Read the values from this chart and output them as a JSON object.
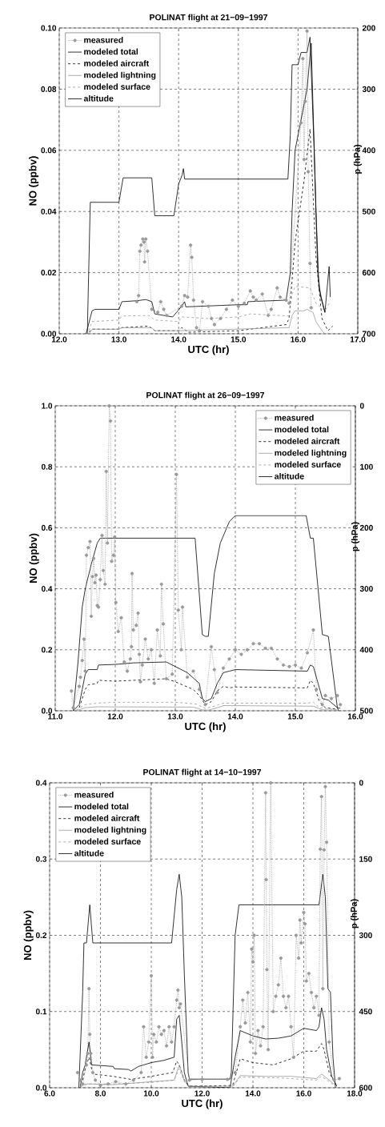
{
  "chart_data": [
    {
      "type": "line",
      "title": "POLINAT flight at 21−09−1997",
      "xlabel": "UTC (hr)",
      "ylabel": "NO (ppbv)",
      "y2label": "p (hPa)",
      "xlim": [
        12,
        17
      ],
      "ylim": [
        0,
        0.1
      ],
      "y2lim": [
        700,
        200
      ],
      "xticks": [
        {
          "value": 12,
          "label": "12.0"
        },
        {
          "value": 13,
          "label": "13.0"
        },
        {
          "value": 14,
          "label": "14.0"
        },
        {
          "value": 15,
          "label": "15.0"
        },
        {
          "value": 16,
          "label": "16.0"
        },
        {
          "value": 17,
          "label": "17.0"
        }
      ],
      "yticks": [
        {
          "value": 0,
          "label": "0.00"
        },
        {
          "value": 0.02,
          "label": "0.02"
        },
        {
          "value": 0.04,
          "label": "0.04"
        },
        {
          "value": 0.06,
          "label": "0.06"
        },
        {
          "value": 0.08,
          "label": "0.08"
        },
        {
          "value": 0.1,
          "label": "0.10"
        }
      ],
      "y2ticks": [
        200,
        300,
        400,
        500,
        600,
        700
      ],
      "grid": true,
      "legend": "top left",
      "series": [
        {
          "name": "measured",
          "color": "#999999",
          "marker": "circle",
          "line_style": "dotted",
          "x": [
            13.3,
            13.33,
            13.35,
            13.37,
            13.4,
            13.42,
            13.43,
            13.45,
            13.48,
            13.55,
            13.65,
            13.7,
            13.75,
            13.8,
            14.05,
            14.1,
            14.15,
            14.2,
            14.22,
            14.25,
            14.3,
            14.35,
            14.4,
            14.5,
            14.55,
            14.6,
            14.7,
            14.8,
            14.9,
            15.0,
            15.1,
            15.2,
            15.25,
            15.3,
            15.4,
            15.5,
            15.55,
            15.65,
            15.7,
            15.8,
            15.85,
            16.05,
            16.08,
            16.1,
            16.12,
            16.15,
            16.17,
            16.2,
            16.22
          ],
          "values": [
            0.0105,
            0.0125,
            0.027,
            0.029,
            0.031,
            0.03,
            0.0235,
            0.031,
            0.027,
            0.008,
            0.007,
            0.0105,
            0.008,
            0.006,
            0.009,
            0.0125,
            0.012,
            0.029,
            0.025,
            0.011,
            0.002,
            0.001,
            0.0105,
            0.009,
            0.005,
            0.003,
            0.005,
            0.008,
            0.011,
            0.009,
            0.01,
            0.014,
            0.012,
            0.011,
            0.013,
            0.006,
            0.008,
            0.015,
            0.012,
            0.011,
            0.01,
            0.069,
            0.09,
            0.057,
            0.076,
            0.099,
            0.053,
            0.023,
            0.0085
          ]
        },
        {
          "name": "modeled total",
          "color": "#000000",
          "marker": "none",
          "line_style": "solid",
          "x": [
            12.45,
            12.55,
            12.6,
            13.0,
            13.05,
            13.3,
            13.45,
            13.55,
            13.6,
            13.9,
            14.05,
            14.1,
            14.12,
            15.0,
            15.15,
            15.16,
            15.8,
            15.87,
            15.9,
            15.95,
            16.05,
            16.15,
            16.22,
            16.3,
            16.35,
            16.45
          ],
          "values": [
            0,
            0.0075,
            0.008,
            0.008,
            0.0105,
            0.0108,
            0.0112,
            0.0105,
            0.0065,
            0.0055,
            0.009,
            0.0105,
            0.0088,
            0.0095,
            0.0095,
            0.0105,
            0.011,
            0.02,
            0.04,
            0.06,
            0.07,
            0.08,
            0.095,
            0.04,
            0.015,
            0.007
          ]
        },
        {
          "name": "modeled aircraft",
          "color": "#000000",
          "marker": "none",
          "line_style": "dashed",
          "x": [
            12.5,
            12.55,
            13.0,
            13.05,
            13.5,
            13.6,
            14.0,
            14.05,
            14.1,
            14.15,
            15.0,
            15.8,
            15.85,
            15.95,
            16.1,
            16.2,
            16.3,
            16.4,
            16.5,
            16.58
          ],
          "values": [
            0.0005,
            0.0015,
            0.0015,
            0.002,
            0.0025,
            0.001,
            0.001,
            0.002,
            0.0015,
            0.0005,
            0.001,
            0.003,
            0.005,
            0.03,
            0.05,
            0.067,
            0.025,
            0.005,
            0.001,
            0.0025
          ]
        },
        {
          "name": "modeled lightning",
          "color": "#999999",
          "marker": "none",
          "line_style": "solid",
          "x": [
            12.5,
            12.55,
            13.0,
            13.05,
            13.55,
            13.6,
            14.0,
            15.85,
            15.9,
            15.95,
            16.1,
            16.15,
            16.25,
            16.3,
            16.4,
            16.45
          ],
          "values": [
            0,
            0.0015,
            0.0015,
            0.002,
            0.002,
            0.001,
            0.001,
            0.002,
            0.006,
            0.0075,
            0.0075,
            0.008,
            0.007,
            0.004,
            0.001,
            0
          ]
        },
        {
          "name": "modeled surface",
          "color": "#999999",
          "marker": "none",
          "line_style": "dashed",
          "x": [
            12.5,
            12.55,
            13.0,
            13.05,
            13.5,
            13.6,
            14.0,
            14.05,
            14.5,
            15.0,
            15.2,
            15.85,
            15.9,
            15.95,
            16.2,
            16.3,
            16.45,
            16.52
          ],
          "values": [
            0.001,
            0.004,
            0.0045,
            0.0058,
            0.006,
            0.0045,
            0.004,
            0.0055,
            0.005,
            0.0055,
            0.0065,
            0.0058,
            0.013,
            0.0155,
            0.015,
            0.01,
            0.0075,
            0.01
          ]
        },
        {
          "name": "altitude",
          "color": "#000000",
          "marker": "none",
          "line_style": "solid",
          "axis": "y2",
          "x": [
            12.47,
            12.52,
            13.0,
            13.07,
            13.55,
            13.6,
            13.92,
            14.0,
            14.06,
            14.08,
            14.1,
            15.83,
            15.87,
            15.9,
            16.0,
            16.05,
            16.15,
            16.2,
            16.27,
            16.33,
            16.38,
            16.45,
            16.52,
            16.54
          ],
          "values": [
            700,
            485,
            485,
            445,
            445,
            507,
            507,
            455,
            440,
            430,
            447,
            447,
            375,
            260,
            260,
            240,
            240,
            215,
            400,
            600,
            640,
            665,
            590,
            640
          ]
        }
      ]
    },
    {
      "type": "line",
      "title": "POLINAT flight at 26−09−1997",
      "xlabel": "UTC (hr)",
      "ylabel": "NO (ppbv)",
      "y2label": "p (hPa)",
      "xlim": [
        11,
        16
      ],
      "ylim": [
        0,
        1
      ],
      "y2lim": [
        500,
        0
      ],
      "xticks": [
        {
          "value": 11,
          "label": "11.0"
        },
        {
          "value": 12,
          "label": "12.0"
        },
        {
          "value": 13,
          "label": "13.0"
        },
        {
          "value": 14,
          "label": "14.0"
        },
        {
          "value": 15,
          "label": "15.0"
        },
        {
          "value": 16,
          "label": "16.0"
        }
      ],
      "yticks": [
        {
          "value": 0,
          "label": "0.0"
        },
        {
          "value": 0.2,
          "label": "0.2"
        },
        {
          "value": 0.4,
          "label": "0.4"
        },
        {
          "value": 0.6,
          "label": "0.6"
        },
        {
          "value": 0.8,
          "label": "0.8"
        },
        {
          "value": 1,
          "label": "1.0"
        }
      ],
      "y2ticks": [
        0,
        100,
        200,
        300,
        400,
        500
      ],
      "grid": true,
      "legend": "top right",
      "series": [
        {
          "name": "measured",
          "color": "#999999",
          "marker": "circle",
          "line_style": "dotted",
          "x": [
            11.27,
            11.3,
            11.4,
            11.42,
            11.45,
            11.48,
            11.5,
            11.52,
            11.55,
            11.58,
            11.6,
            11.62,
            11.64,
            11.66,
            11.68,
            11.7,
            11.72,
            11.75,
            11.78,
            11.8,
            11.83,
            11.85,
            11.87,
            11.9,
            11.92,
            11.94,
            11.97,
            11.99,
            12.01,
            12.05,
            12.1,
            12.15,
            12.2,
            12.25,
            12.27,
            12.28,
            12.3,
            12.35,
            12.38,
            12.4,
            12.42,
            12.45,
            12.5,
            12.55,
            12.6,
            12.65,
            12.7,
            12.75,
            12.77,
            12.8,
            12.85,
            12.95,
            13.02,
            13.05,
            13.1,
            13.12,
            13.2,
            13.3,
            13.4,
            13.5,
            13.6,
            13.65,
            13.7,
            13.8,
            13.9,
            14.0,
            14.1,
            14.2,
            14.3,
            14.4,
            14.5,
            14.6,
            14.7,
            14.8,
            14.9,
            15.0,
            15.1,
            15.2,
            15.3,
            15.35,
            15.45,
            15.5,
            15.6,
            15.7,
            15.75
          ],
          "values": [
            0.065,
            0.01,
            0.08,
            0.11,
            0.165,
            0.235,
            0.13,
            0.51,
            0.535,
            0.555,
            0.31,
            0.44,
            0.5,
            0.42,
            0.445,
            0.345,
            0.34,
            0.43,
            0.575,
            0.46,
            0.415,
            0.785,
            0.55,
            1.0,
            0.95,
            0.49,
            0.51,
            0.57,
            0.355,
            0.26,
            0.305,
            0.16,
            0.13,
            0.17,
            0.21,
            0.45,
            0.265,
            0.28,
            0.32,
            0.185,
            0.095,
            0.15,
            0.235,
            0.17,
            0.2,
            0.09,
            0.265,
            0.18,
            0.415,
            0.285,
            0.105,
            0.12,
            0.775,
            0.33,
            0.2,
            0.34,
            0.11,
            0.13,
            0.07,
            0.02,
            0.21,
            0.135,
            0.06,
            0.14,
            0.17,
            0.2,
            0.185,
            0.2,
            0.22,
            0.22,
            0.205,
            0.205,
            0.17,
            0.15,
            0.145,
            0.15,
            0.14,
            0.19,
            0.265,
            0.07,
            0.02,
            0.05,
            0.04,
            0.05,
            0.02
          ]
        },
        {
          "name": "modeled total",
          "color": "#000000",
          "marker": "none",
          "line_style": "solid",
          "x": [
            11.3,
            11.4,
            11.45,
            11.5,
            11.55,
            11.7,
            11.72,
            12.0,
            12.3,
            12.85,
            13.0,
            13.2,
            13.4,
            13.45,
            13.5,
            13.6,
            13.7,
            13.8,
            13.9,
            14.0,
            15.2,
            15.25,
            15.3,
            15.35,
            15.45,
            15.55,
            15.7,
            15.75
          ],
          "values": [
            0,
            0.02,
            0.07,
            0.12,
            0.135,
            0.135,
            0.15,
            0.152,
            0.157,
            0.16,
            0.145,
            0.125,
            0.09,
            0.04,
            0.03,
            0.04,
            0.09,
            0.125,
            0.13,
            0.135,
            0.13,
            0.15,
            0.145,
            0.11,
            0.04,
            0.035,
            0.01,
            0.008
          ]
        },
        {
          "name": "modeled aircraft",
          "color": "#000000",
          "marker": "none",
          "line_style": "dashed",
          "x": [
            11.4,
            11.5,
            11.55,
            11.7,
            11.72,
            12.0,
            12.85,
            13.0,
            13.3,
            13.4,
            13.5,
            13.6,
            13.7,
            13.8,
            13.9,
            14.0,
            15.2,
            15.25,
            15.3,
            15.4,
            15.5,
            15.7
          ],
          "values": [
            0.01,
            0.07,
            0.085,
            0.09,
            0.1,
            0.097,
            0.105,
            0.095,
            0.07,
            0.05,
            0.02,
            0.03,
            0.065,
            0.08,
            0.075,
            0.078,
            0.075,
            0.1,
            0.09,
            0.03,
            0.01,
            0.005
          ]
        },
        {
          "name": "modeled lightning",
          "color": "#999999",
          "marker": "none",
          "line_style": "solid",
          "x": [
            11.35,
            11.5,
            11.7,
            13.3,
            13.45,
            13.55,
            13.7,
            13.8,
            15.3,
            15.45,
            15.7
          ],
          "values": [
            0,
            0.01,
            0.013,
            0.012,
            0.003,
            0.002,
            0.01,
            0.017,
            0.015,
            0.003,
            0.002
          ]
        },
        {
          "name": "modeled surface",
          "color": "#999999",
          "marker": "none",
          "line_style": "dashed",
          "x": [
            11.35,
            11.5,
            11.7,
            12.0,
            13.0,
            13.35,
            13.5,
            13.65,
            13.8,
            15.2,
            15.3,
            15.4,
            15.7
          ],
          "values": [
            0.002,
            0.02,
            0.025,
            0.028,
            0.028,
            0.022,
            0.008,
            0.015,
            0.025,
            0.025,
            0.028,
            0.01,
            0.003
          ]
        },
        {
          "name": "altitude",
          "color": "#000000",
          "marker": "none",
          "line_style": "solid",
          "axis": "y2",
          "x": [
            11.3,
            11.38,
            11.45,
            11.5,
            11.6,
            11.7,
            11.75,
            13.33,
            13.45,
            13.5,
            13.55,
            13.65,
            13.75,
            13.9,
            14.0,
            15.18,
            15.25,
            15.3,
            15.45,
            15.55,
            15.7,
            15.72
          ],
          "values": [
            500,
            420,
            330,
            300,
            260,
            225,
            217,
            217,
            375,
            378,
            378,
            275,
            225,
            190,
            180,
            180,
            217,
            217,
            375,
            378,
            495,
            500
          ]
        }
      ]
    },
    {
      "type": "line",
      "title": "POLINAT flight at 14−10−1997",
      "xlabel": "UTC (hr)",
      "ylabel": "NO (ppbv)",
      "y2label": "p (hPa)",
      "xlim": [
        6,
        18
      ],
      "ylim": [
        0,
        0.4
      ],
      "y2lim": [
        600,
        0
      ],
      "xticks": [
        {
          "value": 6,
          "label": "6.0"
        },
        {
          "value": 8,
          "label": "8.0"
        },
        {
          "value": 10,
          "label": "10.0"
        },
        {
          "value": 12,
          "label": "12.0"
        },
        {
          "value": 14,
          "label": "14.0"
        },
        {
          "value": 16,
          "label": "16.0"
        },
        {
          "value": 18,
          "label": "18.0"
        }
      ],
      "yticks": [
        {
          "value": 0,
          "label": "0.0"
        },
        {
          "value": 0.1,
          "label": "0.1"
        },
        {
          "value": 0.2,
          "label": "0.2"
        },
        {
          "value": 0.3,
          "label": "0.3"
        },
        {
          "value": 0.4,
          "label": "0.4"
        }
      ],
      "y2ticks": [
        0,
        150,
        300,
        450,
        600
      ],
      "grid": true,
      "legend": "top left",
      "series": [
        {
          "name": "measured",
          "color": "#999999",
          "marker": "circle",
          "line_style": "dotted",
          "x": [
            7.1,
            7.2,
            7.3,
            7.45,
            7.5,
            7.55,
            7.58,
            7.62,
            7.7,
            7.8,
            8.0,
            8.3,
            8.6,
            9.0,
            9.3,
            9.6,
            9.7,
            9.8,
            9.9,
            10.0,
            10.05,
            10.1,
            10.2,
            10.3,
            10.4,
            10.5,
            10.6,
            10.7,
            10.8,
            10.9,
            11.0,
            11.05,
            11.1,
            11.15,
            11.5,
            12.0,
            13.0,
            13.3,
            13.5,
            13.6,
            13.7,
            13.8,
            13.9,
            13.95,
            14.0,
            14.05,
            14.1,
            14.2,
            14.3,
            14.4,
            14.5,
            14.52,
            14.55,
            14.6,
            14.7,
            14.8,
            14.9,
            15.0,
            15.1,
            15.2,
            15.3,
            15.4,
            15.5,
            15.6,
            15.7,
            15.8,
            15.85,
            15.9,
            16.0,
            16.05,
            16.1,
            16.2,
            16.3,
            16.4,
            16.5,
            16.6,
            16.65,
            16.7,
            16.75,
            16.8,
            16.85,
            16.9,
            17.0,
            17.2,
            17.4
          ],
          "values": [
            0.02,
            0.01,
            0.005,
            0.03,
            0.045,
            0.13,
            0.07,
            0.045,
            0.02,
            0.01,
            0.003,
            0.005,
            0.008,
            0.005,
            0.01,
            0.02,
            0.08,
            0.04,
            0.06,
            0.147,
            0.04,
            0.07,
            0.06,
            0.08,
            0.07,
            0.075,
            0.055,
            0.08,
            0.06,
            0.08,
            0.115,
            0.128,
            0.105,
            0.11,
            0.01,
            0.011,
            0.011,
            0.02,
            0.08,
            0.115,
            0.085,
            0.125,
            0.06,
            0.182,
            0.165,
            0.2,
            0.045,
            0.075,
            0.055,
            0.08,
            0.387,
            0.273,
            0.155,
            0.05,
            0.4,
            0.1,
            0.12,
            0.135,
            0.17,
            0.12,
            0.105,
            0.12,
            0.08,
            0.04,
            0.2,
            0.17,
            0.22,
            0.19,
            0.23,
            0.215,
            0.14,
            0.15,
            0.125,
            0.105,
            0.12,
            0.095,
            0.313,
            0.382,
            0.13,
            0.312,
            0.395,
            0.322,
            0.06,
            0.01,
            0.012
          ]
        },
        {
          "name": "modeled total",
          "color": "#000000",
          "marker": "none",
          "line_style": "solid",
          "x": [
            7.2,
            7.3,
            7.4,
            7.55,
            7.65,
            8.5,
            8.55,
            9.1,
            9.2,
            9.5,
            10.0,
            10.5,
            10.9,
            11.0,
            11.1,
            11.2,
            11.3,
            11.45,
            13.1,
            13.3,
            13.5,
            14.0,
            14.5,
            15.0,
            15.5,
            16.0,
            16.5,
            16.6,
            16.7,
            16.8,
            16.9,
            17.1,
            17.3
          ],
          "values": [
            0,
            0.02,
            0.03,
            0.06,
            0.03,
            0.028,
            0.025,
            0.024,
            0.022,
            0.028,
            0.033,
            0.036,
            0.04,
            0.09,
            0.095,
            0.06,
            0.02,
            0.002,
            0,
            0.04,
            0.075,
            0.068,
            0.064,
            0.065,
            0.068,
            0.078,
            0.075,
            0.08,
            0.105,
            0.09,
            0.05,
            0.015,
            0.002
          ]
        },
        {
          "name": "modeled aircraft",
          "color": "#000000",
          "marker": "none",
          "line_style": "dashed",
          "x": [
            7.3,
            7.4,
            7.55,
            7.7,
            8.5,
            9.2,
            10.0,
            10.85,
            11.0,
            11.1,
            11.3,
            11.5,
            13.2,
            13.5,
            14.0,
            14.8,
            15.5,
            16.0,
            16.5,
            16.7,
            16.8,
            17.0,
            17.3
          ],
          "values": [
            0.01,
            0.025,
            0.04,
            0.018,
            0.015,
            0.011,
            0.015,
            0.02,
            0.035,
            0.03,
            0.01,
            0.002,
            0.003,
            0.038,
            0.033,
            0.03,
            0.038,
            0.048,
            0.048,
            0.058,
            0.05,
            0.02,
            0.002
          ]
        },
        {
          "name": "modeled lightning",
          "color": "#999999",
          "marker": "none",
          "line_style": "solid",
          "x": [
            7.2,
            7.4,
            7.6,
            8.5,
            10.0,
            10.9,
            11.1,
            11.3,
            11.45,
            13.2,
            13.5,
            14.5,
            15.5,
            16.5,
            16.7,
            17.0,
            17.3
          ],
          "values": [
            0.002,
            0.005,
            0.005,
            0.004,
            0.008,
            0.01,
            0.03,
            0.01,
            0.002,
            0.002,
            0.016,
            0.015,
            0.015,
            0.012,
            0.018,
            0.01,
            0.002
          ]
        },
        {
          "name": "modeled surface",
          "color": "#999999",
          "marker": "none",
          "line_style": "dashed",
          "x": [
            7.2,
            7.5,
            8.5,
            10.0,
            10.9,
            11.1,
            11.3,
            11.5,
            13.2,
            13.5,
            15.0,
            16.5,
            16.7,
            17.0,
            17.3
          ],
          "values": [
            0.001,
            0.005,
            0.005,
            0.007,
            0.01,
            0.025,
            0.008,
            0.001,
            0.001,
            0.014,
            0.013,
            0.01,
            0.015,
            0.008,
            0.001
          ]
        },
        {
          "name": "altitude",
          "color": "#000000",
          "marker": "none",
          "line_style": "solid",
          "axis": "y2",
          "x": [
            7.15,
            7.3,
            7.35,
            7.45,
            7.58,
            7.7,
            10.8,
            11.0,
            11.1,
            11.2,
            11.3,
            11.45,
            11.5,
            13.1,
            13.15,
            13.3,
            13.45,
            16.6,
            16.75,
            16.85,
            16.95,
            17.05,
            17.15,
            17.25
          ],
          "values": [
            600,
            412,
            315,
            315,
            240,
            315,
            315,
            210,
            180,
            225,
            375,
            570,
            583,
            583,
            570,
            300,
            240,
            240,
            180,
            225,
            405,
            412,
            540,
            600
          ]
        }
      ]
    }
  ]
}
